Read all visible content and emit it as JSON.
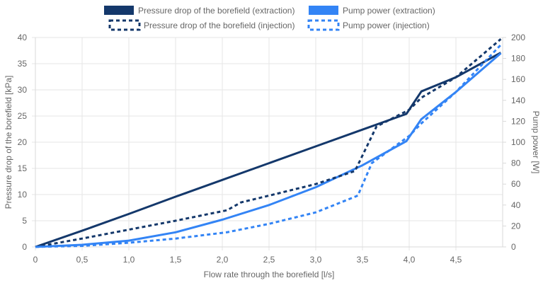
{
  "chart_data": {
    "type": "line",
    "title": "",
    "xlabel": "Flow rate through the borefield [l/s]",
    "ylabel_left": "Pressure drop of the borefield [kPa]",
    "ylabel_right": "Pump power [W]",
    "xlim": [
      0,
      5
    ],
    "ylim_left": [
      0,
      40
    ],
    "ylim_right": [
      0,
      200
    ],
    "x_ticks": [
      "0",
      "0,5",
      "1,0",
      "1,5",
      "2,0",
      "2,5",
      "3,0",
      "3,5",
      "4,0",
      "4,5"
    ],
    "y_left_ticks": [
      "0",
      "5",
      "10",
      "15",
      "20",
      "25",
      "30",
      "35",
      "40"
    ],
    "y_right_ticks": [
      "0",
      "20",
      "40",
      "60",
      "80",
      "100",
      "120",
      "140",
      "160",
      "180",
      "200"
    ],
    "grid": true,
    "legend_position": "top",
    "series": [
      {
        "name": "Pressure drop of the borefield (extraction)",
        "axis": "left",
        "style": "solid",
        "color": "#14386b",
        "points": [
          [
            0,
            0
          ],
          [
            0.5,
            3.1
          ],
          [
            1.0,
            6.3
          ],
          [
            1.5,
            9.6
          ],
          [
            2.0,
            12.8
          ],
          [
            2.5,
            16.0
          ],
          [
            3.0,
            19.2
          ],
          [
            3.5,
            22.4
          ],
          [
            3.97,
            25.4
          ],
          [
            4.13,
            29.7
          ],
          [
            4.5,
            32.4
          ],
          [
            4.98,
            37.1
          ]
        ]
      },
      {
        "name": "Pump power (extraction)",
        "axis": "right",
        "style": "solid",
        "color": "#3384f5",
        "points": [
          [
            0,
            0
          ],
          [
            0.5,
            2
          ],
          [
            1.0,
            6
          ],
          [
            1.5,
            14
          ],
          [
            2.0,
            26
          ],
          [
            2.5,
            40
          ],
          [
            3.0,
            57
          ],
          [
            3.5,
            78
          ],
          [
            3.97,
            101
          ],
          [
            4.13,
            122
          ],
          [
            4.5,
            148
          ],
          [
            4.98,
            185
          ]
        ]
      },
      {
        "name": "Pressure drop of the borefield (injection)",
        "axis": "left",
        "style": "dashed",
        "color": "#14386b",
        "points": [
          [
            0,
            0
          ],
          [
            0.5,
            1.6
          ],
          [
            1.0,
            3.3
          ],
          [
            1.5,
            5.0
          ],
          [
            2.05,
            7.0
          ],
          [
            2.2,
            8.5
          ],
          [
            2.5,
            9.8
          ],
          [
            3.0,
            12.0
          ],
          [
            3.42,
            14.5
          ],
          [
            3.65,
            23.0
          ],
          [
            4.0,
            26.2
          ],
          [
            4.13,
            28.5
          ],
          [
            4.5,
            32.4
          ],
          [
            4.98,
            39.7
          ]
        ]
      },
      {
        "name": "Pump power (injection)",
        "axis": "right",
        "style": "dashed",
        "color": "#3384f5",
        "points": [
          [
            0,
            0
          ],
          [
            0.5,
            1
          ],
          [
            1.0,
            4
          ],
          [
            1.5,
            8
          ],
          [
            2.05,
            14
          ],
          [
            2.5,
            22
          ],
          [
            3.0,
            33
          ],
          [
            3.45,
            49
          ],
          [
            3.6,
            80
          ],
          [
            4.0,
            106
          ],
          [
            4.13,
            118
          ],
          [
            4.5,
            148
          ],
          [
            4.98,
            193
          ]
        ]
      }
    ]
  }
}
